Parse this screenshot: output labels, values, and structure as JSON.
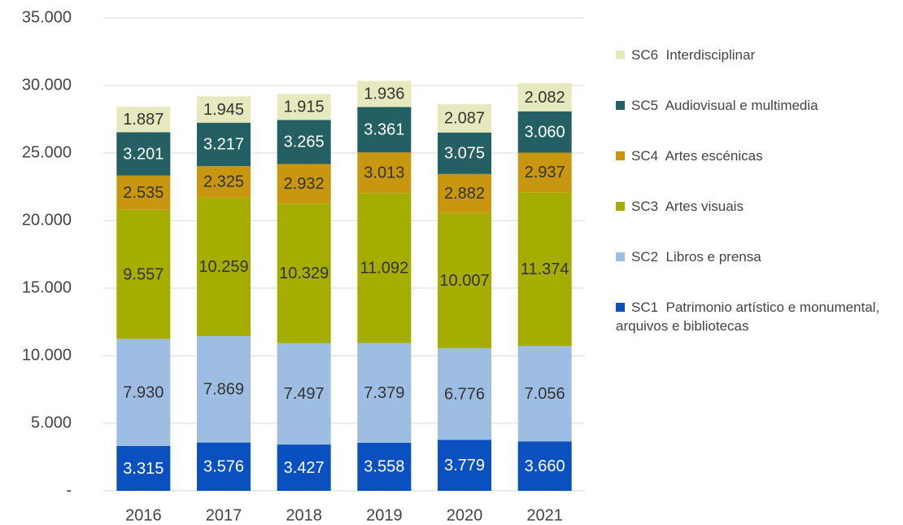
{
  "chart_data": {
    "type": "stacked_bar",
    "categories": [
      "2016",
      "2017",
      "2018",
      "2019",
      "2020",
      "2021"
    ],
    "ylim": [
      0,
      35000
    ],
    "yticks": [
      {
        "value": 0,
        "label": "-"
      },
      {
        "value": 5000,
        "label": "5.000"
      },
      {
        "value": 10000,
        "label": "10.000"
      },
      {
        "value": 15000,
        "label": "15.000"
      },
      {
        "value": 20000,
        "label": "20.000"
      },
      {
        "value": 25000,
        "label": "25.000"
      },
      {
        "value": 30000,
        "label": "30.000"
      },
      {
        "value": 35000,
        "label": "35.000"
      }
    ],
    "grid": true,
    "legend": "right",
    "series": [
      {
        "name": "SC1  Patrimonio artístico e monumental, arquivos e bibliotecas",
        "color": "#0a50be",
        "label_color": "#ffffff",
        "values": [
          3315,
          3576,
          3427,
          3558,
          3779,
          3660
        ],
        "value_labels": [
          "3.315",
          "3.576",
          "3.427",
          "3.558",
          "3.779",
          "3.660"
        ]
      },
      {
        "name": "SC2  Libros e prensa",
        "color": "#9dbde3",
        "label_color": "#333333",
        "values": [
          7930,
          7869,
          7497,
          7379,
          6776,
          7056
        ],
        "value_labels": [
          "7.930",
          "7.869",
          "7.497",
          "7.379",
          "6.776",
          "7.056"
        ]
      },
      {
        "name": "SC3  Artes visuais",
        "color": "#a4ad00",
        "label_color": "#333333",
        "values": [
          9557,
          10259,
          10329,
          11092,
          10007,
          11374
        ],
        "value_labels": [
          "9.557",
          "10.259",
          "10.329",
          "11.092",
          "10.007",
          "11.374"
        ]
      },
      {
        "name": "SC4  Artes escénicas",
        "color": "#c9960f",
        "label_color": "#333333",
        "values": [
          2535,
          2325,
          2932,
          3013,
          2882,
          2937
        ],
        "value_labels": [
          "2.535",
          "2.325",
          "2.932",
          "3.013",
          "2.882",
          "2.937"
        ]
      },
      {
        "name": "SC5  Audiovisual e multimedia",
        "color": "#245f63",
        "label_color": "#ffffff",
        "values": [
          3201,
          3217,
          3265,
          3361,
          3075,
          3060
        ],
        "value_labels": [
          "3.201",
          "3.217",
          "3.265",
          "3.361",
          "3.075",
          "3.060"
        ]
      },
      {
        "name": "SC6  Interdisciplinar",
        "color": "#e6e8bd",
        "label_color": "#333333",
        "values": [
          1887,
          1945,
          1915,
          1936,
          2087,
          2082
        ],
        "value_labels": [
          "1.887",
          "1.945",
          "1.915",
          "1.936",
          "2.087",
          "2.082"
        ]
      }
    ]
  }
}
